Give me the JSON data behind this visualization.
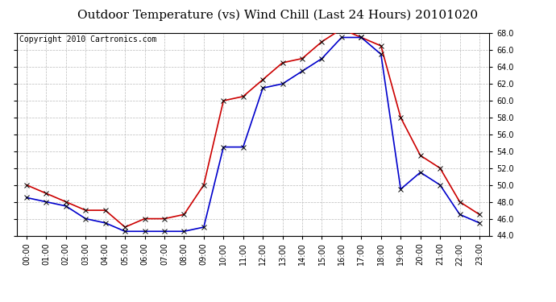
{
  "title": "Outdoor Temperature (vs) Wind Chill (Last 24 Hours) 20101020",
  "copyright_text": "Copyright 2010 Cartronics.com",
  "hours": [
    "00:00",
    "01:00",
    "02:00",
    "03:00",
    "04:00",
    "05:00",
    "06:00",
    "07:00",
    "08:00",
    "09:00",
    "10:00",
    "11:00",
    "12:00",
    "13:00",
    "14:00",
    "15:00",
    "16:00",
    "17:00",
    "18:00",
    "19:00",
    "20:00",
    "21:00",
    "22:00",
    "23:00"
  ],
  "outdoor_temp": [
    50.0,
    49.0,
    48.0,
    47.0,
    47.0,
    45.0,
    46.0,
    46.0,
    46.5,
    50.0,
    60.0,
    60.5,
    62.5,
    64.5,
    65.0,
    67.0,
    68.5,
    67.5,
    66.5,
    58.0,
    53.5,
    52.0,
    48.0,
    46.5
  ],
  "wind_chill": [
    48.5,
    48.0,
    47.5,
    46.0,
    45.5,
    44.5,
    44.5,
    44.5,
    44.5,
    45.0,
    54.5,
    54.5,
    61.5,
    62.0,
    63.5,
    65.0,
    67.5,
    67.5,
    65.5,
    49.5,
    51.5,
    50.0,
    46.5,
    45.5
  ],
  "ylim_min": 44.0,
  "ylim_max": 68.0,
  "yticks": [
    44.0,
    46.0,
    48.0,
    50.0,
    52.0,
    54.0,
    56.0,
    58.0,
    60.0,
    62.0,
    64.0,
    66.0,
    68.0
  ],
  "red_color": "#cc0000",
  "blue_color": "#0000cc",
  "bg_color": "#ffffff",
  "grid_color": "#bbbbbb",
  "title_fontsize": 11,
  "tick_fontsize": 7,
  "copyright_fontsize": 7,
  "marker": "x",
  "marker_size": 4,
  "line_width": 1.2
}
